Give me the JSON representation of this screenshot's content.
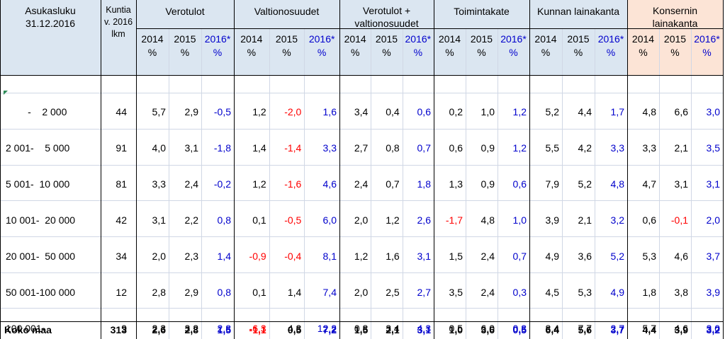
{
  "colors": {
    "header_bg": "#dbe6f1",
    "konserni_bg": "#fce4d6",
    "negative": "#ff0000",
    "forecast": "#0000cc"
  },
  "header": {
    "asukasluku": "Asukasluku\n31.12.2016",
    "kuntia": "Kuntia\nv. 2016\nlkm",
    "groups": [
      {
        "label": "Verotulot"
      },
      {
        "label": "Valtionosuudet"
      },
      {
        "label": "Verotulot +\nvaltionosuudet"
      },
      {
        "label": "Toimintakate"
      },
      {
        "label": "Kunnan lainakanta"
      },
      {
        "label": "Konsernin\nlainakanta"
      }
    ],
    "years": [
      "2014\n%",
      "2015\n%",
      "2016*\n%"
    ]
  },
  "rows": [
    {
      "label": "        -    2 000",
      "kuntia": "44",
      "values": [
        "5,7",
        "2,9",
        "-0,5",
        "1,2",
        "-2,0",
        "1,6",
        "3,4",
        "0,4",
        "0,6",
        "0,2",
        "1,0",
        "1,2",
        "5,2",
        "4,4",
        "1,7",
        "4,8",
        "6,6",
        "3,0"
      ]
    },
    {
      "label": "2 001-    5 000",
      "kuntia": "91",
      "values": [
        "4,0",
        "3,1",
        "-1,8",
        "1,4",
        "-1,4",
        "3,3",
        "2,7",
        "0,8",
        "0,7",
        "0,6",
        "0,9",
        "1,2",
        "5,5",
        "4,2",
        "3,3",
        "3,3",
        "2,1",
        "3,5"
      ]
    },
    {
      "label": "5 001-  10 000",
      "kuntia": "81",
      "values": [
        "3,3",
        "2,4",
        "-0,2",
        "1,2",
        "-1,6",
        "4,6",
        "2,4",
        "0,7",
        "1,8",
        "1,3",
        "0,9",
        "0,6",
        "7,9",
        "5,2",
        "4,8",
        "4,7",
        "3,1",
        "3,1"
      ]
    },
    {
      "label": "10 001-  20 000",
      "kuntia": "42",
      "values": [
        "3,1",
        "2,2",
        "0,8",
        "0,1",
        "-0,5",
        "6,0",
        "2,0",
        "1,2",
        "2,6",
        "-1,7",
        "4,8",
        "1,0",
        "3,9",
        "2,1",
        "3,2",
        "0,6",
        "-0,1",
        "2,0"
      ]
    },
    {
      "label": "20 001-  50 000",
      "kuntia": "34",
      "values": [
        "2,0",
        "2,3",
        "1,4",
        "-0,9",
        "-0,4",
        "8,1",
        "1,2",
        "1,6",
        "3,1",
        "1,5",
        "2,4",
        "0,7",
        "4,9",
        "3,6",
        "5,2",
        "5,3",
        "4,6",
        "3,7"
      ]
    },
    {
      "label": "50 001-100 000",
      "kuntia": "12",
      "values": [
        "2,8",
        "2,9",
        "0,8",
        "0,1",
        "1,4",
        "7,4",
        "2,0",
        "2,5",
        "2,7",
        "3,5",
        "2,4",
        "0,3",
        "4,5",
        "5,3",
        "4,9",
        "1,8",
        "3,8",
        "3,9"
      ]
    },
    {
      "label": "100 001-",
      "kuntia": "9",
      "values": [
        "2,3",
        "3,2",
        "2,8",
        "-6,3",
        "4,3",
        "12,2",
        "0,8",
        "3,4",
        "4,3",
        "0,5",
        "6,0",
        "0,3",
        "8,4",
        "7,7",
        "2,7",
        "5,7",
        "4,6",
        "3,0"
      ]
    }
  ],
  "total": {
    "label": "Koko maa",
    "kuntia": "313",
    "values": [
      "2,6",
      "2,8",
      "1,5",
      "-1,1",
      "0,5",
      "7,2",
      "1,5",
      "2,1",
      "3,1",
      "1,0",
      "3,6",
      "0,5",
      "6,4",
      "5,6",
      "3,7",
      "4,4",
      "3,9",
      "3,2"
    ]
  },
  "red_cells": [
    [
      1,
      4
    ],
    [
      2,
      4
    ],
    [
      3,
      4
    ],
    [
      4,
      4
    ],
    [
      4,
      3
    ],
    [
      6,
      3
    ],
    [
      7,
      3
    ],
    [
      4,
      9
    ],
    [
      4,
      16
    ]
  ]
}
